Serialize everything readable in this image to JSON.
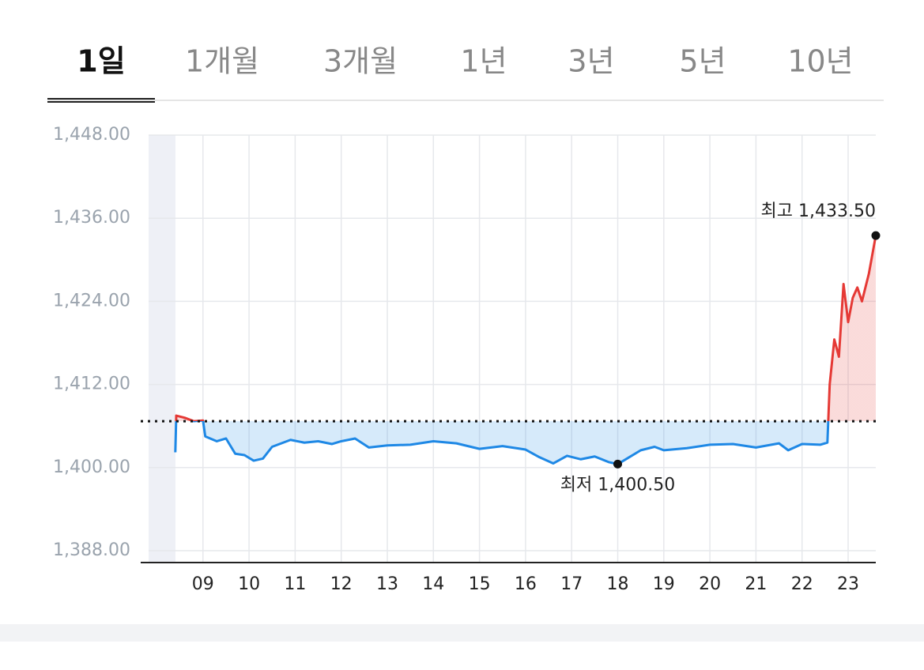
{
  "tabs": [
    "1일",
    "1개월",
    "3개월",
    "1년",
    "3년",
    "5년",
    "10년"
  ],
  "active_tab": 0,
  "chart_data": {
    "type": "line",
    "x": [
      8.4,
      8.42,
      8.6,
      8.8,
      9.0,
      9.05,
      9.3,
      9.5,
      9.7,
      9.9,
      10.1,
      10.3,
      10.5,
      10.7,
      10.9,
      11.2,
      11.5,
      11.8,
      12.0,
      12.3,
      12.6,
      13.0,
      13.5,
      14.0,
      14.5,
      15.0,
      15.5,
      16.0,
      16.3,
      16.6,
      16.9,
      17.2,
      17.5,
      17.8,
      18.0,
      18.2,
      18.5,
      18.8,
      19.0,
      19.5,
      20.0,
      20.5,
      21.0,
      21.5,
      21.7,
      22.0,
      22.4,
      22.55,
      22.6,
      22.7,
      22.8,
      22.9,
      23.0,
      23.1,
      23.2,
      23.3,
      23.45,
      23.6
    ],
    "series": [
      {
        "up_color": "#e53935",
        "down_color": "#1e88e5",
        "values": [
          1402.2,
          1407.5,
          1407.2,
          1406.7,
          1406.8,
          1404.5,
          1403.8,
          1404.2,
          1402.0,
          1401.8,
          1401.0,
          1401.3,
          1403.0,
          1403.5,
          1404.0,
          1403.6,
          1403.8,
          1403.4,
          1403.8,
          1404.2,
          1402.9,
          1403.2,
          1403.3,
          1403.8,
          1403.5,
          1402.7,
          1403.1,
          1402.6,
          1401.5,
          1400.6,
          1401.7,
          1401.2,
          1401.6,
          1400.8,
          1400.5,
          1401.3,
          1402.5,
          1403.0,
          1402.5,
          1402.8,
          1403.3,
          1403.4,
          1402.9,
          1403.5,
          1402.5,
          1403.4,
          1403.3,
          1403.6,
          1412.0,
          1418.5,
          1416.0,
          1426.5,
          1421.0,
          1424.5,
          1426.0,
          1424.0,
          1428.0,
          1433.5
        ]
      }
    ],
    "baseline": 1406.7,
    "xlim": [
      7.82,
      23.6
    ],
    "ylim": [
      1388,
      1448
    ],
    "yticks": [
      {
        "value": 1448,
        "label": "1,448.00"
      },
      {
        "value": 1436,
        "label": "1,436.00"
      },
      {
        "value": 1424,
        "label": "1,424.00"
      },
      {
        "value": 1412,
        "label": "1,412.00"
      },
      {
        "value": 1400,
        "label": "1,400.00"
      },
      {
        "value": 1388,
        "label": "1,388.00"
      }
    ],
    "xticks": [
      {
        "value": 9,
        "label": "09"
      },
      10,
      11,
      12,
      13,
      14,
      15,
      16,
      17,
      18,
      19,
      20,
      21,
      22,
      23
    ],
    "grid": true,
    "annotations": [
      {
        "label": "최고 1,433.50",
        "x": 23.6,
        "value": 1433.5
      },
      {
        "label": "최저 1,400.50",
        "x": 18.0,
        "value": 1400.5
      }
    ]
  }
}
